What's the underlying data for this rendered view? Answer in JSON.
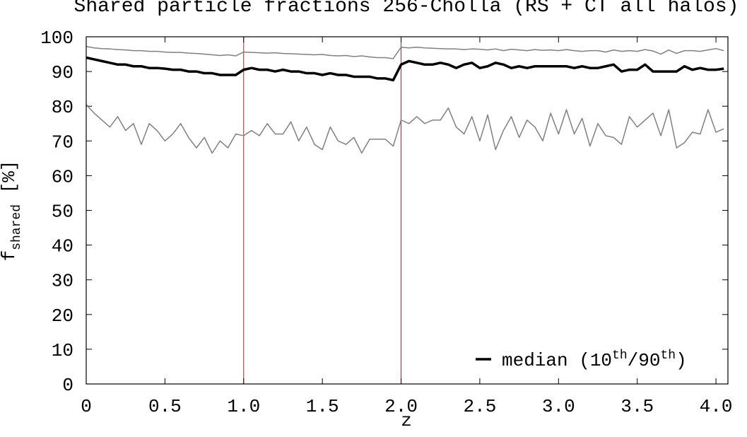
{
  "chart_data": {
    "type": "line",
    "title": "Shared particle fractions 256-Cholla (RS + CT all halos)",
    "xlabel": "z",
    "ylabel": [
      "f",
      "shared",
      " [%]"
    ],
    "legend": {
      "parts": [
        "median (10",
        "th",
        "/90",
        "th",
        ")"
      ],
      "loc": "lower right"
    },
    "x": [
      0,
      0.05,
      0.1,
      0.15,
      0.2,
      0.25,
      0.3,
      0.35,
      0.4,
      0.45,
      0.5,
      0.55,
      0.6,
      0.65,
      0.7,
      0.75,
      0.8,
      0.85,
      0.9,
      0.95,
      1.0,
      1.05,
      1.1,
      1.15,
      1.2,
      1.25,
      1.3,
      1.35,
      1.4,
      1.45,
      1.5,
      1.55,
      1.6,
      1.65,
      1.7,
      1.75,
      1.8,
      1.85,
      1.9,
      1.95,
      2.0,
      2.05,
      2.1,
      2.15,
      2.2,
      2.25,
      2.3,
      2.35,
      2.4,
      2.45,
      2.5,
      2.55,
      2.6,
      2.65,
      2.7,
      2.75,
      2.8,
      2.85,
      2.9,
      2.95,
      3.0,
      3.05,
      3.1,
      3.15,
      3.2,
      3.25,
      3.3,
      3.35,
      3.4,
      3.45,
      3.5,
      3.55,
      3.6,
      3.65,
      3.7,
      3.75,
      3.8,
      3.85,
      3.9,
      3.95,
      4.0,
      4.05
    ],
    "series": [
      {
        "color": "#808080",
        "linewidth": 1.5,
        "values": [
          80.5,
          78,
          76,
          74,
          77,
          73,
          75,
          69,
          75,
          73,
          70,
          72,
          75,
          71,
          68,
          71,
          66.5,
          70,
          68,
          72,
          71.5,
          73,
          71.5,
          75,
          72,
          72,
          75.5,
          70,
          74,
          69,
          67.5,
          74,
          70,
          69,
          71,
          66.5,
          70.5,
          70.5,
          70.5,
          68.5,
          76,
          75,
          77,
          75,
          76,
          76,
          79.5,
          74,
          72,
          77,
          70,
          77.5,
          67.5,
          73,
          77,
          71,
          76,
          74,
          70,
          78,
          72,
          79,
          72,
          76.5,
          68.5,
          75,
          71.5,
          71,
          69,
          77,
          74,
          76,
          78,
          71.5,
          79,
          68,
          69.5,
          72.5,
          72,
          79,
          72.5,
          73.5
        ]
      },
      {
        "color": "#808080",
        "linewidth": 1.5,
        "values": [
          97.2,
          96.8,
          96.6,
          96.5,
          96.3,
          96.2,
          96,
          96,
          95.8,
          95.8,
          95.6,
          95.5,
          95.5,
          95.3,
          95.2,
          95,
          94.8,
          94.6,
          94.8,
          94.5,
          95.6,
          95.5,
          95.4,
          95.3,
          95.4,
          95.2,
          95.1,
          95,
          94.9,
          94.8,
          94.9,
          94.6,
          94.5,
          94.6,
          94.3,
          94.5,
          94.2,
          94,
          94,
          93.7,
          97,
          96.8,
          97,
          96.8,
          96.7,
          96.6,
          96.5,
          96.5,
          96.3,
          96.5,
          96.4,
          96.2,
          96.5,
          96,
          96.4,
          96.2,
          96,
          96.3,
          96.1,
          96.2,
          96,
          96.3,
          96,
          95.8,
          96,
          96,
          95.6,
          96.2,
          95.8,
          96,
          95.8,
          96.3,
          95.9,
          95,
          96.2,
          95.2,
          96,
          96,
          95.8,
          96.2,
          96.6,
          96
        ]
      },
      {
        "color": "#000000",
        "linewidth": 3.5,
        "legend": true,
        "values": [
          94,
          93.5,
          93,
          92.5,
          92,
          92,
          91.5,
          91.5,
          91,
          91,
          90.8,
          90.5,
          90.5,
          90,
          90,
          89.5,
          89.5,
          89,
          89,
          89,
          90.5,
          91,
          90.5,
          90.5,
          90,
          90.5,
          90,
          90,
          89.5,
          89.5,
          89,
          89.5,
          89,
          89,
          88.5,
          88.5,
          88.5,
          88,
          88,
          87.5,
          92,
          93,
          92.5,
          92,
          92,
          92.5,
          92,
          91,
          92,
          92.5,
          91,
          91.5,
          92.5,
          92,
          91,
          91.5,
          91,
          91.5,
          91.5,
          91.5,
          91.5,
          91.5,
          91,
          91.5,
          91,
          91,
          91.5,
          92,
          90,
          90.5,
          90.5,
          92,
          90,
          90,
          90,
          90,
          91.5,
          90.5,
          91,
          90.5,
          90.5,
          90.8
        ]
      }
    ],
    "vlines": [
      1.0,
      2.0
    ],
    "vline_color": "#b22222",
    "xlim": [
      0,
      4.076
    ],
    "ylim": [
      0,
      100
    ],
    "xticks": [
      0,
      0.5,
      {
        "value": 1,
        "label": "1.0"
      },
      1.5,
      {
        "value": 2,
        "label": "2.0"
      },
      2.5,
      {
        "value": 3,
        "label": "3.0"
      },
      3.5,
      {
        "value": 4,
        "label": "4.0"
      }
    ],
    "yticks": [
      0,
      10,
      20,
      30,
      40,
      50,
      60,
      70,
      80,
      90,
      100
    ],
    "grid": false
  }
}
